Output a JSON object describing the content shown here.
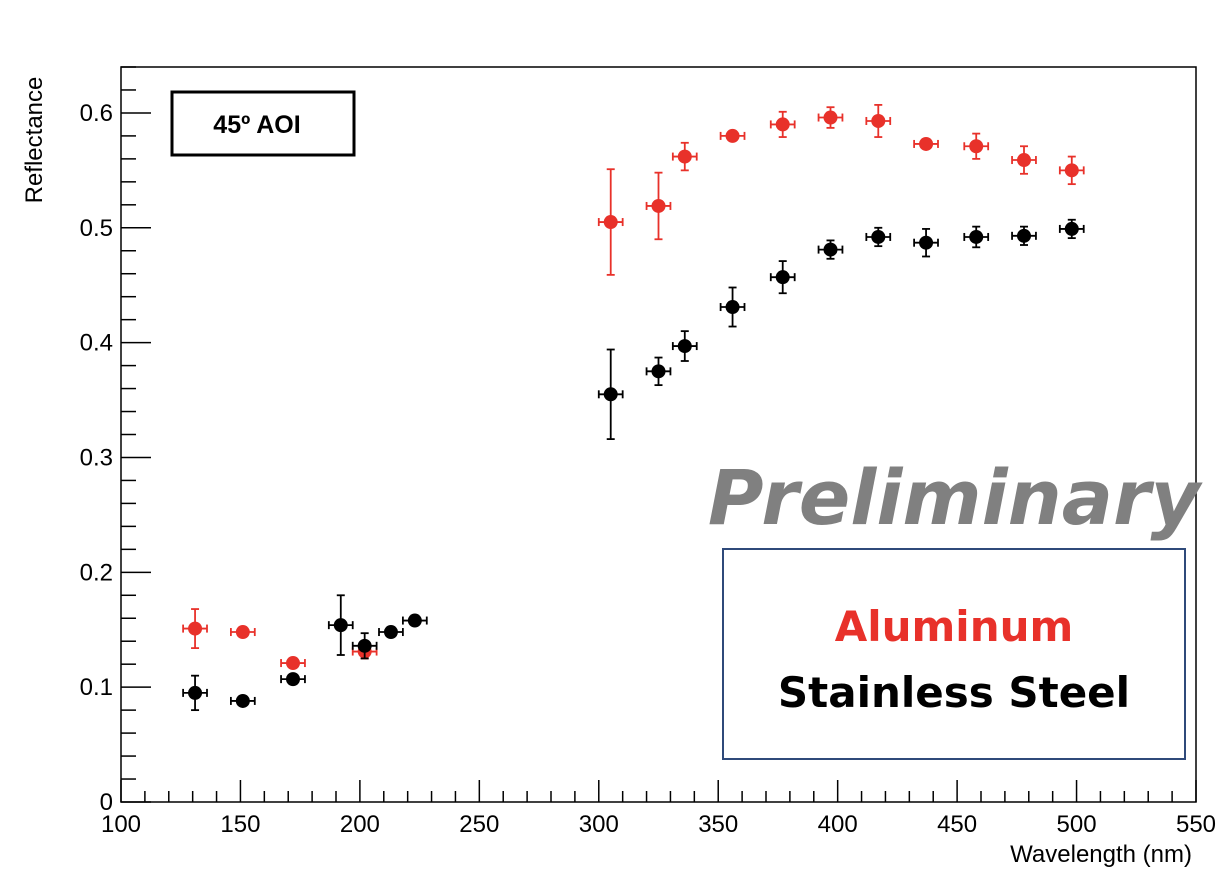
{
  "chart_data": {
    "type": "scatter",
    "title": "",
    "xlabel": "Wavelength (nm)",
    "ylabel": "Reflectance",
    "xlim": [
      100,
      550
    ],
    "ylim": [
      0,
      0.64
    ],
    "x_ticks": [
      100,
      150,
      200,
      250,
      300,
      350,
      400,
      450,
      500,
      550
    ],
    "y_ticks": [
      0,
      0.1,
      0.2,
      0.3,
      0.4,
      0.5,
      0.6
    ],
    "y_tick_labels": [
      "0",
      "0.1",
      "0.2",
      "0.3",
      "0.4",
      "0.5",
      "0.6"
    ],
    "grid": false,
    "legend_placement": "bottom-right",
    "series": [
      {
        "name": "Aluminum",
        "color": "#e8312a",
        "x_err": 5,
        "points": [
          {
            "x": 131,
            "y": 0.151,
            "yerr": 0.017
          },
          {
            "x": 151,
            "y": 0.148,
            "yerr": 0.004
          },
          {
            "x": 172,
            "y": 0.121,
            "yerr": 0.004
          },
          {
            "x": 202,
            "y": 0.131,
            "yerr": 0.006
          },
          {
            "x": 305,
            "y": 0.505,
            "yerr": 0.046
          },
          {
            "x": 325,
            "y": 0.519,
            "yerr": 0.029
          },
          {
            "x": 336,
            "y": 0.562,
            "yerr": 0.012
          },
          {
            "x": 356,
            "y": 0.58,
            "yerr": 0.004
          },
          {
            "x": 377,
            "y": 0.59,
            "yerr": 0.011
          },
          {
            "x": 397,
            "y": 0.596,
            "yerr": 0.009
          },
          {
            "x": 417,
            "y": 0.593,
            "yerr": 0.014
          },
          {
            "x": 437,
            "y": 0.573,
            "yerr": 0.004
          },
          {
            "x": 458,
            "y": 0.571,
            "yerr": 0.011
          },
          {
            "x": 478,
            "y": 0.559,
            "yerr": 0.012
          },
          {
            "x": 498,
            "y": 0.55,
            "yerr": 0.012
          }
        ]
      },
      {
        "name": "Stainless Steel",
        "color": "#000000",
        "x_err": 5,
        "points": [
          {
            "x": 131,
            "y": 0.095,
            "yerr": 0.015
          },
          {
            "x": 151,
            "y": 0.088,
            "yerr": 0.004
          },
          {
            "x": 172,
            "y": 0.107,
            "yerr": 0.004
          },
          {
            "x": 192,
            "y": 0.154,
            "yerr": 0.026
          },
          {
            "x": 202,
            "y": 0.136,
            "yerr": 0.011
          },
          {
            "x": 213,
            "y": 0.148,
            "yerr": 0.004
          },
          {
            "x": 223,
            "y": 0.158,
            "yerr": 0.004
          },
          {
            "x": 305,
            "y": 0.355,
            "yerr": 0.039
          },
          {
            "x": 325,
            "y": 0.375,
            "yerr": 0.012
          },
          {
            "x": 336,
            "y": 0.397,
            "yerr": 0.013
          },
          {
            "x": 356,
            "y": 0.431,
            "yerr": 0.017
          },
          {
            "x": 377,
            "y": 0.457,
            "yerr": 0.014
          },
          {
            "x": 397,
            "y": 0.481,
            "yerr": 0.008
          },
          {
            "x": 417,
            "y": 0.492,
            "yerr": 0.008
          },
          {
            "x": 437,
            "y": 0.487,
            "yerr": 0.012
          },
          {
            "x": 458,
            "y": 0.492,
            "yerr": 0.009
          },
          {
            "x": 478,
            "y": 0.493,
            "yerr": 0.008
          },
          {
            "x": 498,
            "y": 0.499,
            "yerr": 0.008
          }
        ]
      }
    ],
    "annotations": {
      "aoi_label": "45º AOI",
      "watermark": "Preliminary",
      "watermark_color": "#808080",
      "legend_border_color": "#2f4a7a"
    }
  }
}
